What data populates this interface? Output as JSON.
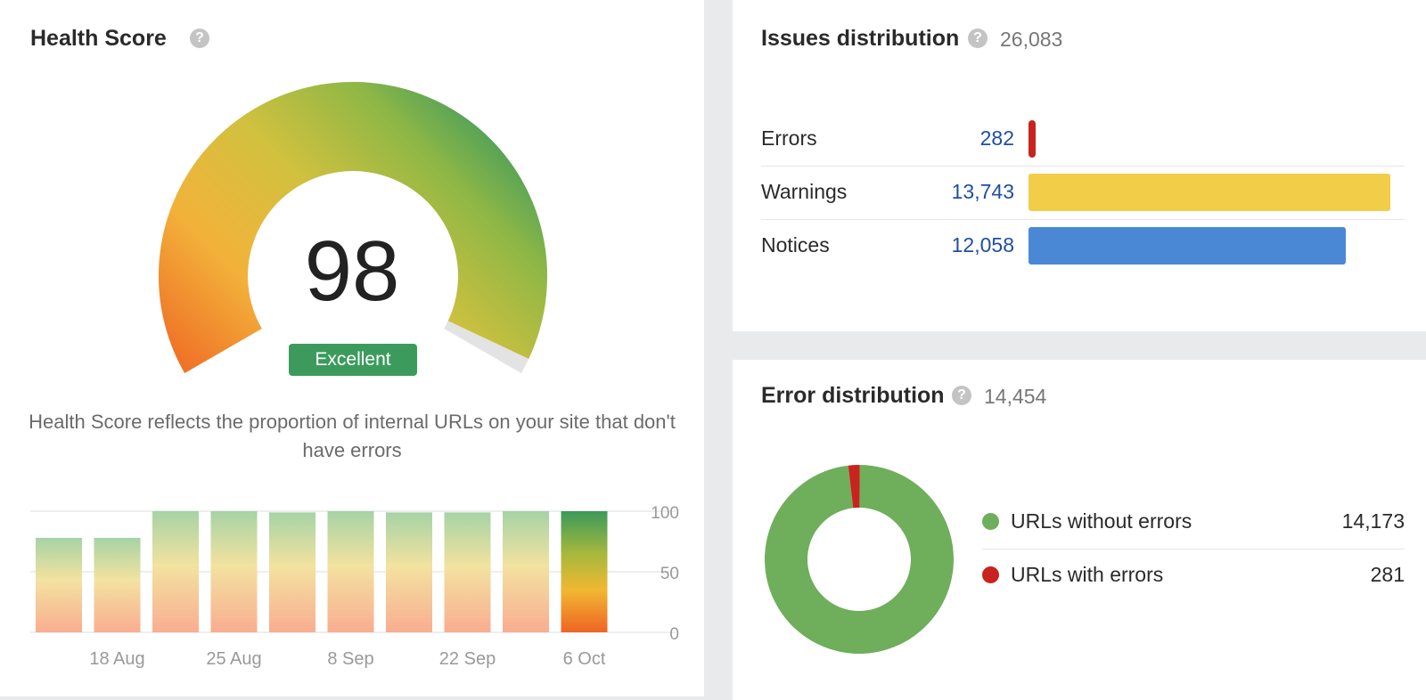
{
  "health": {
    "title": "Health Score",
    "score": "98",
    "score_value": 98,
    "badge": "Excellent",
    "description": "Health Score reflects the proportion of internal URLs on your site that don't have errors",
    "history": {
      "values": [
        78,
        78,
        100,
        100,
        99,
        100,
        99,
        99,
        100,
        100
      ],
      "ticks": [
        "18 Aug",
        "25 Aug",
        "8 Sep",
        "22 Sep",
        "6 Oct"
      ],
      "y_ticks": [
        "100",
        "50",
        "0"
      ]
    }
  },
  "issues": {
    "title": "Issues distribution",
    "total": "26,083",
    "rows": [
      {
        "label": "Errors",
        "count": "282",
        "value": 282,
        "color": "#c8231f"
      },
      {
        "label": "Warnings",
        "count": "13,743",
        "value": 13743,
        "color": "#f2cd48"
      },
      {
        "label": "Notices",
        "count": "12,058",
        "value": 12058,
        "color": "#4a88d6"
      }
    ]
  },
  "error_distribution": {
    "title": "Error distribution",
    "total": "14,454",
    "legend": [
      {
        "label": "URLs without errors",
        "value": "14,173",
        "number": 14173,
        "color": "#6fae5b"
      },
      {
        "label": "URLs with errors",
        "value": "281",
        "number": 281,
        "color": "#c8231f"
      }
    ]
  },
  "chart_data": {
    "type": "bar",
    "categories": [
      "",
      "18 Aug",
      "",
      "25 Aug",
      "",
      "8 Sep",
      "",
      "22 Sep",
      "",
      "6 Oct"
    ],
    "values": [
      78,
      78,
      100,
      100,
      99,
      100,
      99,
      99,
      100,
      100
    ],
    "title": "",
    "xlabel": "",
    "ylabel": "",
    "ylim": [
      0,
      100
    ],
    "y_ticks": [
      0,
      50,
      100
    ],
    "grid": true
  }
}
